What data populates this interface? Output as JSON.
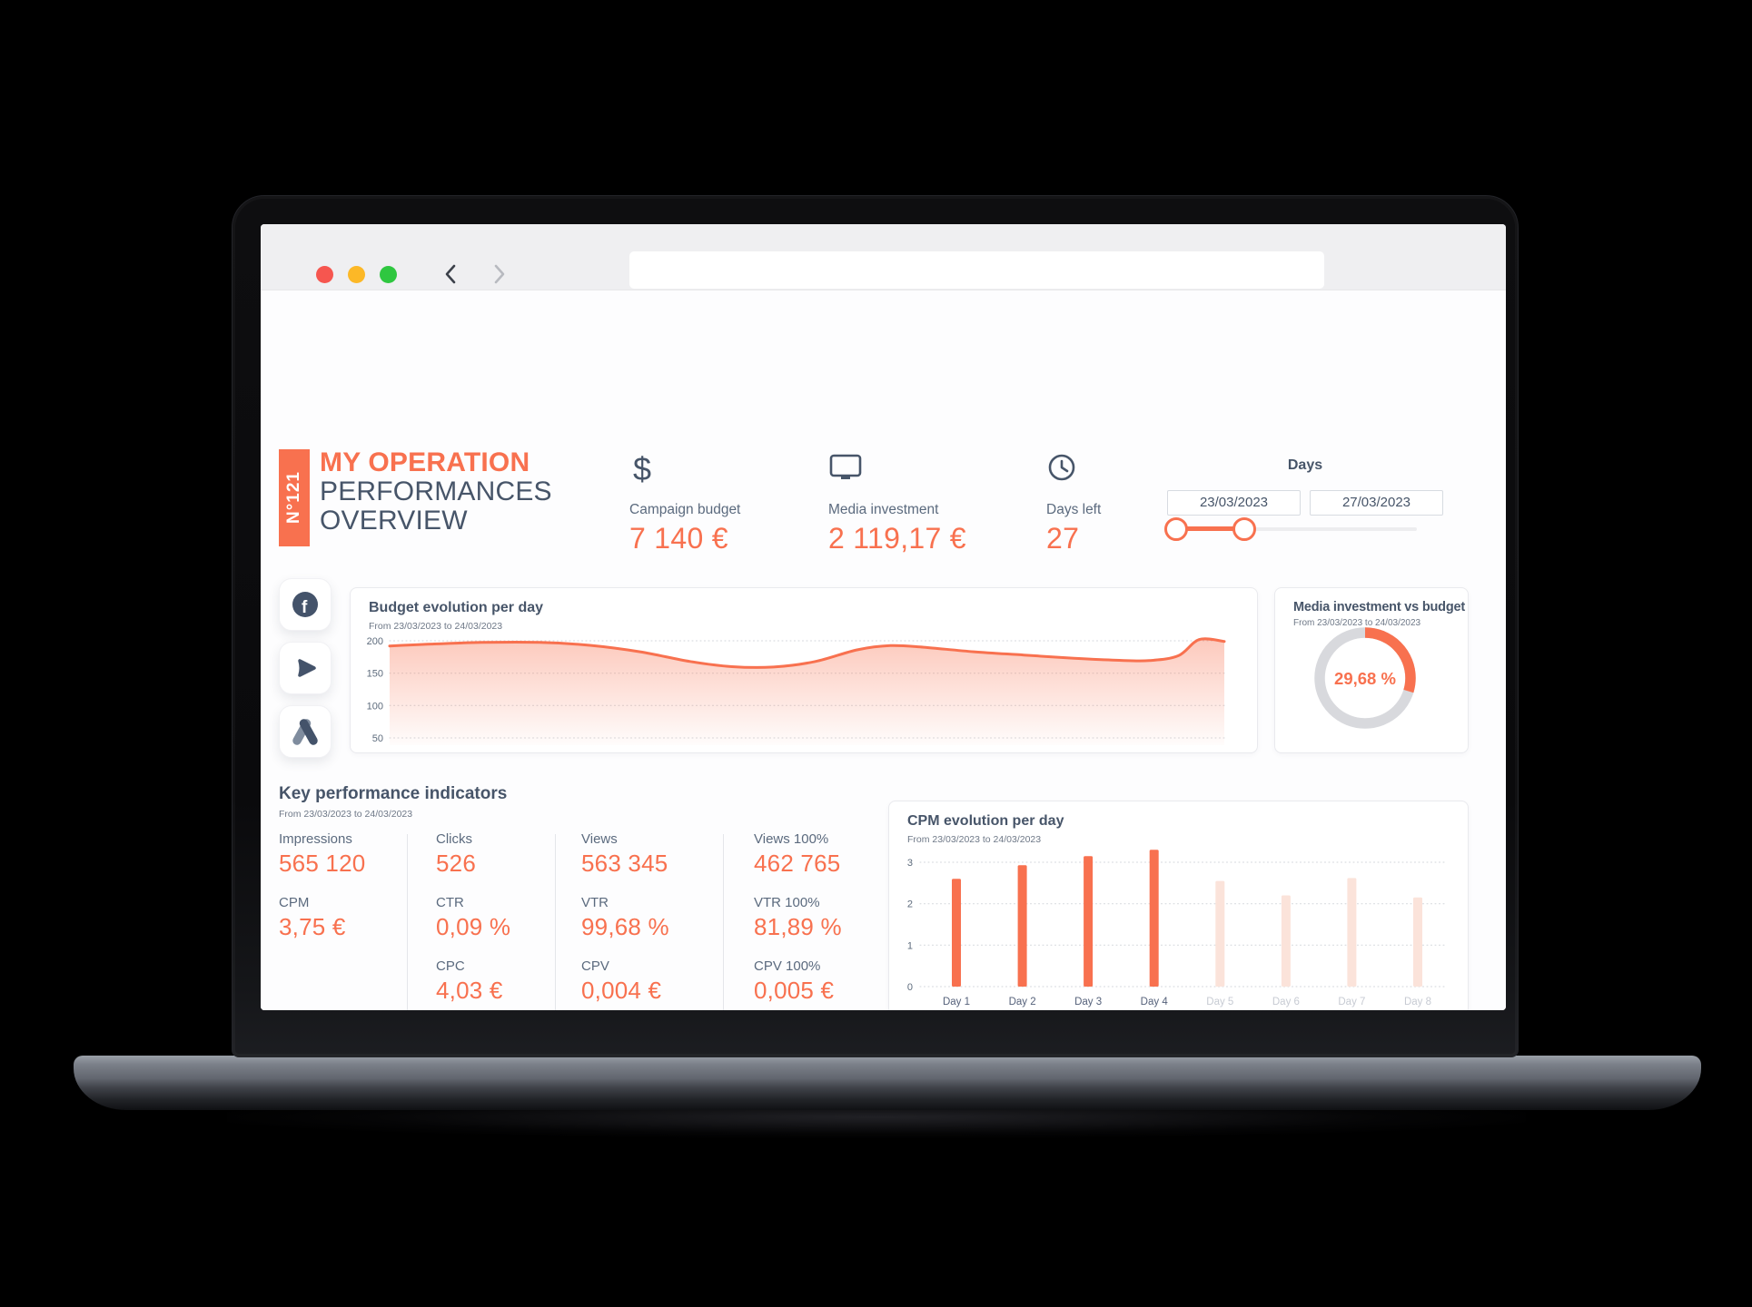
{
  "colors": {
    "accent": "#F8714F",
    "accent_pale": "#FBE3DA",
    "slate": "#475569",
    "label": "#5B6A7E",
    "muted": "#6E7887",
    "grid": "#D2D5DA",
    "ring": "#D8D9DD"
  },
  "browser": {
    "address_value": ""
  },
  "header": {
    "badge": "N°121",
    "title_line1": "MY OPERATION",
    "title_line2": "PERFORMANCES",
    "title_line3": "OVERVIEW",
    "stats": [
      {
        "icon": "dollar-icon",
        "label": "Campaign budget",
        "value": "7 140 €"
      },
      {
        "icon": "monitor-icon",
        "label": "Media investment",
        "value": "2 119,17 €"
      },
      {
        "icon": "clock-icon",
        "label": "Days left",
        "value": "27"
      }
    ],
    "days": {
      "label": "Days",
      "start": "23/03/2023",
      "end": "27/03/2023"
    }
  },
  "sidebar": {
    "icons": [
      "facebook-icon",
      "play-icon",
      "google-ads-icon"
    ]
  },
  "kpis": {
    "title": "Key performance indicators",
    "subtitle": "From 23/03/2023 to 24/03/2023",
    "columns": [
      {
        "cells": [
          {
            "label": "Impressions",
            "value": "565 120"
          },
          {
            "label": "CPM",
            "value": "3,75 €"
          }
        ]
      },
      {
        "cells": [
          {
            "label": "Clicks",
            "value": "526"
          },
          {
            "label": "CTR",
            "value": "0,09 %"
          },
          {
            "label": "CPC",
            "value": "4,03 €"
          }
        ]
      },
      {
        "cells": [
          {
            "label": "Views",
            "value": "563 345"
          },
          {
            "label": "VTR",
            "value": "99,68 %"
          },
          {
            "label": "CPV",
            "value": "0,004 €"
          }
        ]
      },
      {
        "cells": [
          {
            "label": "Views 100%",
            "value": "462 765"
          },
          {
            "label": "VTR 100%",
            "value": "81,89 %"
          },
          {
            "label": "CPV 100%",
            "value": "0,005 €"
          }
        ]
      }
    ]
  },
  "chart_data": [
    {
      "id": "budget",
      "type": "area",
      "title": "Budget evolution per day",
      "subtitle": "From 23/03/2023 to 24/03/2023",
      "ylim": [
        50,
        200
      ],
      "yticks": [
        "200",
        "150",
        "100",
        "50"
      ],
      "grid": true,
      "points": [
        [
          0.0,
          192
        ],
        [
          0.05,
          195
        ],
        [
          0.11,
          197.5
        ],
        [
          0.18,
          197.5
        ],
        [
          0.24,
          193
        ],
        [
          0.3,
          183
        ],
        [
          0.36,
          168
        ],
        [
          0.41,
          160
        ],
        [
          0.46,
          159.5
        ],
        [
          0.51,
          168
        ],
        [
          0.56,
          186
        ],
        [
          0.6,
          192.5
        ],
        [
          0.64,
          190
        ],
        [
          0.7,
          183
        ],
        [
          0.76,
          178
        ],
        [
          0.82,
          173
        ],
        [
          0.87,
          170
        ],
        [
          0.91,
          169.5
        ],
        [
          0.945,
          177
        ],
        [
          0.97,
          202
        ],
        [
          1.0,
          199
        ]
      ]
    },
    {
      "id": "media_vs_budget",
      "type": "donut",
      "title": "Media investment vs budget",
      "subtitle": "From 23/03/2023 to 24/03/2023",
      "value_label": "29,68 %",
      "percent": 29.68
    },
    {
      "id": "cpm",
      "type": "bar",
      "title": "CPM evolution per day",
      "subtitle": "From 23/03/2023 to 24/03/2023",
      "categories": [
        "Day 1",
        "Day 2",
        "Day 3",
        "Day 4",
        "Day 5",
        "Day 6",
        "Day 7",
        "Day 8"
      ],
      "values": [
        2.6,
        2.93,
        3.15,
        3.3,
        2.55,
        2.2,
        2.62,
        2.15
      ],
      "active_count": 4,
      "ylim": [
        0,
        3.5
      ],
      "yticks": [
        "3",
        "2",
        "1",
        "0"
      ],
      "grid": true,
      "legend": "none"
    }
  ]
}
